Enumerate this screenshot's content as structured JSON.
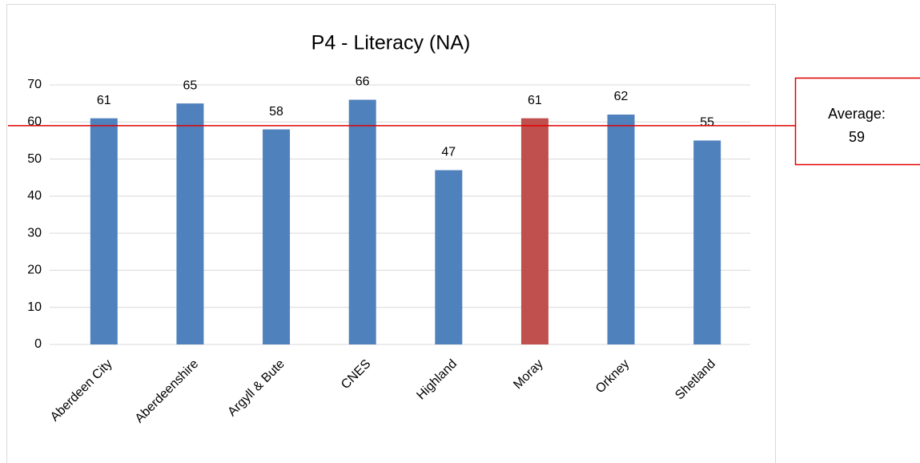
{
  "chart_data": {
    "type": "bar",
    "title": "P4 - Literacy (NA)",
    "categories": [
      "Aberdeen City",
      "Aberdeenshire",
      "Argyll & Bute",
      "CNES",
      "Highland",
      "Moray",
      "Orkney",
      "Shetland"
    ],
    "values": [
      61,
      65,
      58,
      66,
      47,
      61,
      62,
      55
    ],
    "colors": [
      "#4f81bd",
      "#4f81bd",
      "#4f81bd",
      "#4f81bd",
      "#4f81bd",
      "#c0504d",
      "#4f81bd",
      "#4f81bd"
    ],
    "ylim": [
      0,
      70
    ],
    "yticks": [
      0,
      10,
      20,
      30,
      40,
      50,
      60,
      70
    ],
    "grid": true,
    "average": {
      "label": "Average:",
      "value": 59,
      "color": "#e00000"
    }
  }
}
